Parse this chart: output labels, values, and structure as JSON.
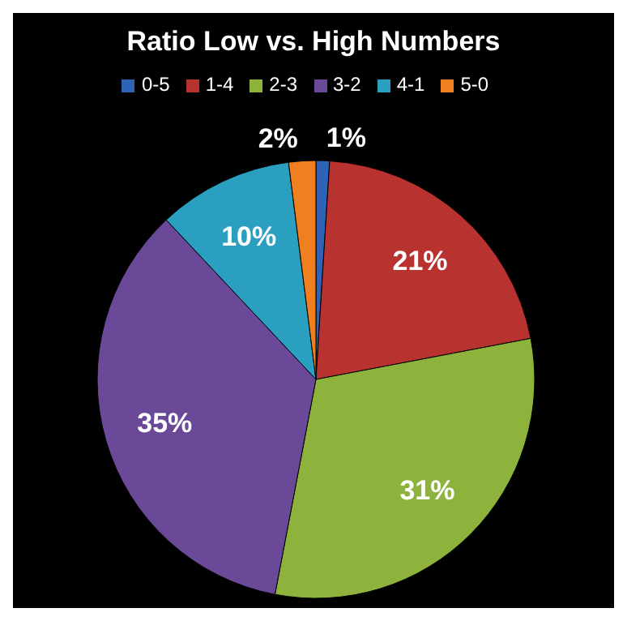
{
  "chart_data": {
    "type": "pie",
    "title": "Ratio Low vs. High Numbers",
    "categories": [
      "0-5",
      "1-4",
      "2-3",
      "3-2",
      "4-1",
      "5-0"
    ],
    "values": [
      1,
      21,
      31,
      35,
      10,
      2
    ],
    "colors": [
      "#2e63b8",
      "#b8322f",
      "#8db33c",
      "#6a4a98",
      "#2b9fc0",
      "#f0801f"
    ],
    "value_labels": [
      "1%",
      "21%",
      "31%",
      "35%",
      "10%",
      "2%"
    ],
    "legend": "top"
  }
}
